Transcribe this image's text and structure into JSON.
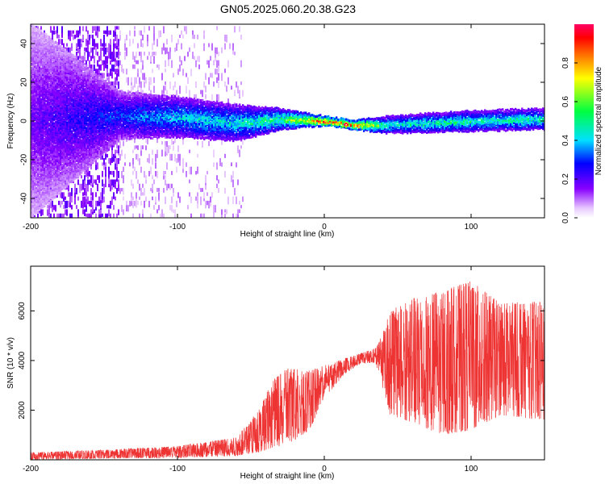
{
  "title": "GN05.2025.060.20.38.G23",
  "chart_data": [
    {
      "type": "heatmap",
      "xlabel": "Height of straight line (km)",
      "ylabel": "Frequency (Hz)",
      "xlim": [
        -200,
        150
      ],
      "ylim": [
        -50,
        50
      ],
      "x_ticks": [
        -200,
        -100,
        0,
        100
      ],
      "y_ticks": [
        -40,
        -20,
        0,
        20,
        40
      ],
      "colorbar": {
        "label": "Normalized spectral amplitude",
        "range": [
          0,
          1
        ],
        "ticks": [
          0.0,
          0.2,
          0.4,
          0.6,
          0.8
        ]
      },
      "bands": [
        {
          "x": -200,
          "center": 0,
          "halfwidth": 50,
          "amp": 0.18
        },
        {
          "x": -140,
          "center": 3,
          "halfwidth": 12,
          "amp": 0.32
        },
        {
          "x": -100,
          "center": 2,
          "halfwidth": 10,
          "amp": 0.42
        },
        {
          "x": -60,
          "center": -1,
          "halfwidth": 9,
          "amp": 0.45
        },
        {
          "x": -30,
          "center": 1,
          "halfwidth": 5,
          "amp": 0.55
        },
        {
          "x": 0,
          "center": 0,
          "halfwidth": 2,
          "amp": 0.95
        },
        {
          "x": 20,
          "center": -2,
          "halfwidth": 2,
          "amp": 0.95
        },
        {
          "x": 40,
          "center": -2,
          "halfwidth": 4,
          "amp": 0.5
        },
        {
          "x": 100,
          "center": 0,
          "halfwidth": 5,
          "amp": 0.5
        },
        {
          "x": 150,
          "center": 1,
          "halfwidth": 5,
          "amp": 0.5
        }
      ]
    },
    {
      "type": "line",
      "xlabel": "Height of straight line (km)",
      "ylabel": "SNR (10 * v/v)",
      "xlim": [
        -200,
        150
      ],
      "ylim": [
        0,
        7800
      ],
      "x_ticks": [
        -200,
        -100,
        0,
        100
      ],
      "y_ticks": [
        2000,
        4000,
        6000
      ],
      "color": "#ee3333",
      "envelope": [
        {
          "x": -200,
          "low": 0,
          "high": 300
        },
        {
          "x": -150,
          "low": 50,
          "high": 400
        },
        {
          "x": -100,
          "low": 80,
          "high": 550
        },
        {
          "x": -60,
          "low": 150,
          "high": 900
        },
        {
          "x": -45,
          "low": 300,
          "high": 2000
        },
        {
          "x": -35,
          "low": 500,
          "high": 3200
        },
        {
          "x": -25,
          "low": 600,
          "high": 3700
        },
        {
          "x": -10,
          "low": 1200,
          "high": 3600
        },
        {
          "x": 0,
          "low": 2500,
          "high": 3800
        },
        {
          "x": 15,
          "low": 3500,
          "high": 4100
        },
        {
          "x": 25,
          "low": 3900,
          "high": 4300
        },
        {
          "x": 35,
          "low": 3900,
          "high": 4500
        },
        {
          "x": 45,
          "low": 1800,
          "high": 6000
        },
        {
          "x": 60,
          "low": 1500,
          "high": 6500
        },
        {
          "x": 80,
          "low": 1000,
          "high": 6800
        },
        {
          "x": 100,
          "low": 1200,
          "high": 7200
        },
        {
          "x": 120,
          "low": 1800,
          "high": 6300
        },
        {
          "x": 150,
          "low": 1600,
          "high": 6400
        }
      ]
    }
  ]
}
